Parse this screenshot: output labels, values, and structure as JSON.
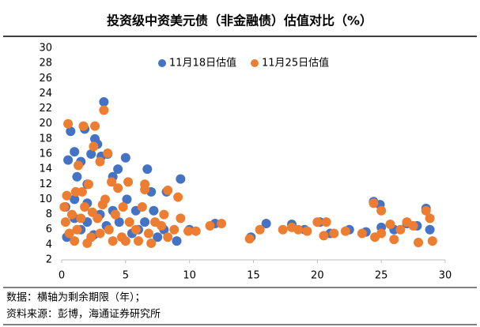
{
  "chart_data": {
    "type": "scatter",
    "title": "投资级中资美元债（非金融债）估值对比（%）",
    "notes": [
      "数据：横轴为剩余期限（年）；",
      "资料来源：彭博，海通证券研究所"
    ],
    "xlim": [
      0,
      30
    ],
    "xticks": [
      0,
      5,
      10,
      15,
      20,
      25,
      30
    ],
    "ylim": [
      2,
      30
    ],
    "yticks": [
      2,
      4,
      6,
      8,
      10,
      12,
      14,
      16,
      18,
      20,
      22,
      24,
      26,
      28,
      30
    ],
    "grid": false,
    "legend": "top",
    "series": [
      {
        "name": "11月18日估值",
        "color": "#4472c4",
        "x": [
          0.5,
          0.7,
          1,
          1.2,
          1.5,
          1.8,
          2,
          2.3,
          2.6,
          2.8,
          3.1,
          3.3,
          3.6,
          4,
          4.4,
          5,
          5.1,
          6.7,
          7,
          9.3,
          8.2,
          24.4,
          24.9,
          28.5,
          0.3,
          1,
          2,
          3,
          4.5,
          6,
          7.5,
          9,
          10,
          12,
          14.8,
          16,
          18,
          19,
          20.2,
          21,
          22.5,
          23.8,
          25,
          26,
          27,
          27.8,
          28.8,
          0.4,
          1.5,
          2.5,
          3.5,
          5.5,
          6.5,
          8,
          1,
          2,
          4,
          5.8,
          7.2
        ],
        "values": [
          15.2,
          19,
          16.3,
          13,
          15,
          19.3,
          12,
          16,
          18,
          17.3,
          15.7,
          22.9,
          16,
          13,
          14,
          15.5,
          10,
          14,
          11,
          12.7,
          11,
          9.7,
          9.3,
          8.8,
          9,
          10,
          9.5,
          8,
          7,
          6,
          5,
          4.5,
          6,
          6.8,
          5,
          6.8,
          6.7,
          6,
          7,
          5.5,
          6,
          5.7,
          6.3,
          6,
          6.8,
          6.5,
          6,
          5,
          6,
          5.3,
          6.5,
          5.5,
          7,
          6,
          7.5,
          7,
          8.5,
          8.5,
          8.5
        ]
      },
      {
        "name": "11月25日估值",
        "color": "#ed7d31",
        "x": [
          0.5,
          1.1,
          1.7,
          2.6,
          2.5,
          3.3,
          3.6,
          0.4,
          1.3,
          2.1,
          3,
          3.9,
          4.4,
          5.2,
          6.5,
          6.5,
          8.3,
          9.1,
          0.3,
          0.8,
          1.2,
          1.8,
          2.3,
          2.8,
          3.2,
          3.7,
          4.2,
          4.7,
          5.3,
          5.8,
          6.3,
          6.8,
          7.3,
          7.8,
          8.3,
          8.8,
          9.3,
          9.9,
          10.5,
          11.6,
          12.5,
          14.7,
          15.5,
          17.3,
          18,
          18.5,
          19.2,
          20,
          20.7,
          20.5,
          21.3,
          22.2,
          23.5,
          24.4,
          24.5,
          25,
          25,
          25.7,
          26,
          26.5,
          27,
          27.5,
          27.9,
          28.5,
          28.8,
          29,
          1,
          2,
          3,
          4,
          5,
          6,
          7,
          8,
          0.6,
          1.5,
          2.4,
          3.4,
          4.8,
          0.2,
          1.6
        ],
        "values": [
          20,
          11,
          19.7,
          19.7,
          17,
          21.8,
          16.1,
          10.5,
          14.5,
          12,
          15,
          12.3,
          11.5,
          12.3,
          12,
          11.3,
          11.2,
          10.3,
          7,
          8,
          6,
          9,
          5,
          7.5,
          9.3,
          6,
          8,
          5,
          7,
          6,
          9,
          5.5,
          7,
          6.5,
          5,
          6,
          7.5,
          5.8,
          5.8,
          6.5,
          6.8,
          4.8,
          6,
          6,
          6.3,
          6,
          5.8,
          7,
          7,
          5.2,
          5.5,
          5.8,
          5.5,
          9.5,
          5,
          8.5,
          5.5,
          6.7,
          4.7,
          6,
          7,
          6.5,
          4.3,
          8.5,
          7.5,
          4.5,
          4.5,
          4.2,
          5.5,
          4.5,
          4.5,
          4.5,
          4.2,
          8,
          5.5,
          7.5,
          8.3,
          10,
          9,
          9,
          11
        ]
      }
    ]
  }
}
